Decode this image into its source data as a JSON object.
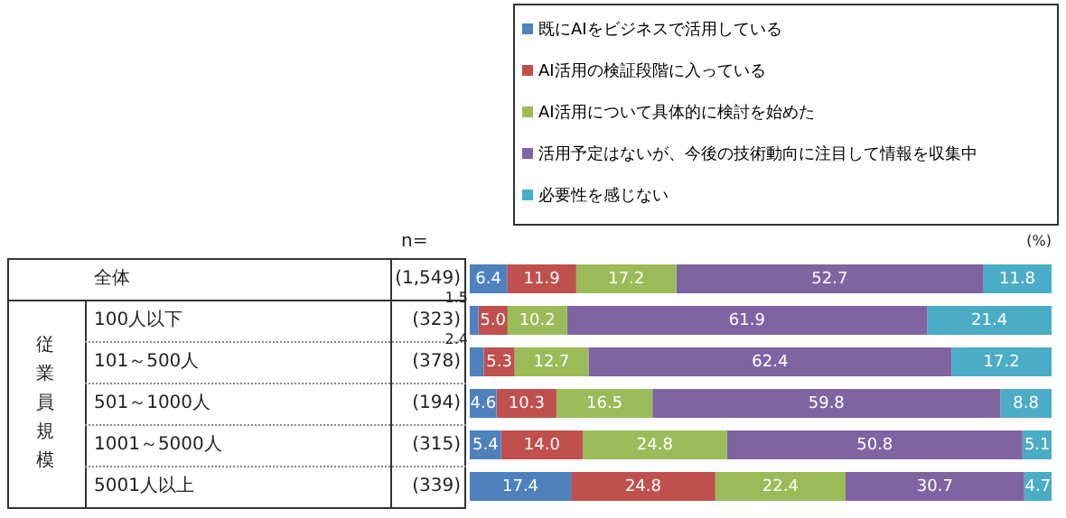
{
  "chart_data": {
    "type": "bar",
    "orientation": "horizontal",
    "stacked": true,
    "legend": "top right",
    "tick_labels": "y",
    "xlim": [
      0,
      100
    ],
    "categories": [
      "全体",
      "100人以下",
      "101～500人",
      "501～1000人",
      "1001～5000人",
      "5001人以上"
    ],
    "series": [
      {
        "name": "既にAIをビジネスで活用している",
        "color": "#4f81bd",
        "values": [
          6.4,
          1.5,
          2.4,
          4.6,
          5.4,
          17.4
        ],
        "value_labels": [
          "6.4",
          "1.5",
          "2.4",
          "4.6",
          "5.4",
          "17.4"
        ]
      },
      {
        "name": "AI活用の検証段階に入っている",
        "color": "#c0504d",
        "values": [
          11.9,
          5.0,
          5.3,
          10.3,
          14.0,
          24.8
        ],
        "value_labels": [
          "11.9",
          "5.0",
          "5.3",
          "10.3",
          "14.0",
          "24.8"
        ]
      },
      {
        "name": "AI活用について具体的に検討を始めた",
        "color": "#9bbb59",
        "values": [
          17.2,
          10.2,
          12.7,
          16.5,
          24.8,
          22.4
        ],
        "value_labels": [
          "17.2",
          "10.2",
          "12.7",
          "16.5",
          "24.8",
          "22.4"
        ]
      },
      {
        "name": "活用予定はないが、今後の技術動向に注目して情報を収集中",
        "color": "#8064a2",
        "values": [
          52.7,
          61.9,
          62.4,
          59.8,
          50.8,
          30.7
        ],
        "value_labels": [
          "52.7",
          "61.9",
          "62.4",
          "59.8",
          "50.8",
          "30.7"
        ]
      },
      {
        "name": "必要性を感じない",
        "color": "#4bacc6",
        "values": [
          11.8,
          21.4,
          17.2,
          8.8,
          5.1,
          4.7
        ],
        "value_labels": [
          "11.8",
          "21.4",
          "17.2",
          "8.8",
          "5.1",
          "4.7"
        ]
      }
    ],
    "annotations": [
      "n=",
      "(1,549)",
      "(323)",
      "(378)",
      "(194)",
      "(315)",
      "(339)",
      "従業員規模",
      "(%)"
    ]
  }
}
